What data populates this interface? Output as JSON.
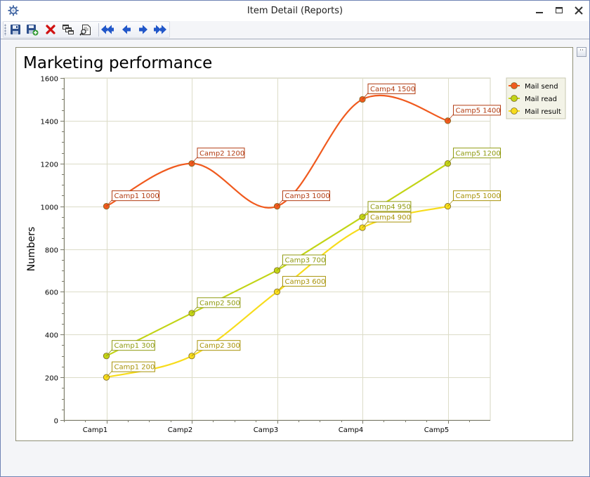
{
  "window": {
    "title": "Item Detail (Reports)"
  },
  "toolbar": {
    "buttons": [
      {
        "name": "save-button",
        "icon": "floppy-disk-icon"
      },
      {
        "name": "save-new-button",
        "icon": "floppy-disk-plus-icon"
      },
      {
        "name": "delete-button",
        "icon": "red-x-icon"
      },
      {
        "name": "copy-button",
        "icon": "copy-windows-icon"
      },
      {
        "name": "print-preview-button",
        "icon": "document-magnifier-icon"
      },
      {
        "name": "first-record-button",
        "icon": "double-arrow-left-icon"
      },
      {
        "name": "previous-record-button",
        "icon": "arrow-left-icon"
      },
      {
        "name": "next-record-button",
        "icon": "arrow-right-icon"
      },
      {
        "name": "last-record-button",
        "icon": "double-arrow-right-icon"
      }
    ]
  },
  "side_button": {
    "label": "··"
  },
  "chart_data": {
    "type": "line",
    "title": "Marketing performance",
    "xlabel": "",
    "ylabel": "Numbers",
    "categories": [
      "Camp1",
      "Camp2",
      "Camp3",
      "Camp4",
      "Camp5"
    ],
    "ylim": [
      0,
      1600
    ],
    "yticks": [
      0,
      200,
      400,
      600,
      800,
      1000,
      1200,
      1400,
      1600
    ],
    "grid": true,
    "legend_position": "top-right",
    "series": [
      {
        "name": "Mail send",
        "color": "#f05a1e",
        "label_color": "#b23c12",
        "smooth": true,
        "values": [
          1000,
          1200,
          1000,
          1500,
          1400
        ],
        "labels": [
          "Camp1 1000",
          "Camp2 1200",
          "Camp3 1000",
          "Camp4 1500",
          "Camp5 1400"
        ]
      },
      {
        "name": "Mail read",
        "color": "#c2d416",
        "label_color": "#8f9a10",
        "smooth": false,
        "values": [
          300,
          500,
          700,
          950,
          1200
        ],
        "labels": [
          "Camp1 300",
          "Camp2 500",
          "Camp3 700",
          "Camp4 950",
          "Camp5 1200"
        ]
      },
      {
        "name": "Mail result",
        "color": "#f7dc1c",
        "label_color": "#a89308",
        "smooth": true,
        "values": [
          200,
          300,
          600,
          900,
          1000
        ],
        "labels": [
          "Camp1 200",
          "Camp2 300",
          "Camp3 600",
          "Camp4 900",
          "Camp5 1000"
        ]
      }
    ]
  }
}
